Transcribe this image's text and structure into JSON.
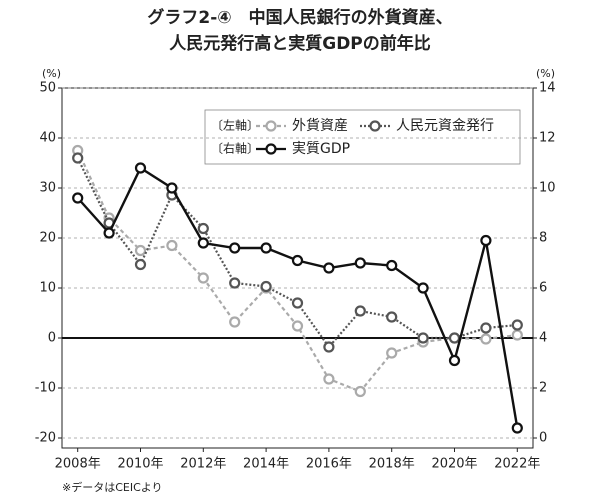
{
  "chart_data": {
    "type": "line",
    "title": [
      "グラフ2-④　中国人民銀行の外貨資産、",
      "人民元発行高と実質GDPの前年比"
    ],
    "y_unit": "(%)",
    "y2_unit": "(%)",
    "source": "※データはCEICより",
    "legend_groups": [
      "〔左軸〕",
      "〔右軸〕"
    ],
    "x": [
      2008,
      2009,
      2010,
      2011,
      2012,
      2013,
      2014,
      2015,
      2016,
      2017,
      2018,
      2019,
      2020,
      2021,
      2022
    ],
    "xlim": [
      2007.5,
      2022.5
    ],
    "xticks": [
      {
        "value": 2008,
        "label": "2008年"
      },
      {
        "value": 2010,
        "label": "2010年"
      },
      {
        "value": 2012,
        "label": "2012年"
      },
      {
        "value": 2014,
        "label": "2014年"
      },
      {
        "value": 2016,
        "label": "2016年"
      },
      {
        "value": 2018,
        "label": "2018年"
      },
      {
        "value": 2020,
        "label": "2020年"
      },
      {
        "value": 2022,
        "label": "2022年"
      }
    ],
    "ylim": [
      -22,
      50
    ],
    "yticks": [
      -20,
      -10,
      0,
      10,
      20,
      30,
      40,
      50
    ],
    "y2lim": [
      -0.4,
      14
    ],
    "y2ticks": [
      0,
      2,
      4,
      6,
      8,
      10,
      12,
      14
    ],
    "grid": true,
    "zero_line": true,
    "series": [
      {
        "name": "外貨資産",
        "color": "#aaaaaa",
        "dash": "4,3",
        "axis": "y",
        "values": [
          37.5,
          24,
          17.5,
          18.5,
          12,
          3.2,
          10,
          2.4,
          -8.2,
          -10.7,
          -3,
          -0.8,
          0,
          -0.2,
          0.6
        ]
      },
      {
        "name": "人民元資金発行",
        "color": "#555555",
        "dash": "2,2",
        "axis": "y",
        "values": [
          36,
          23,
          14.7,
          28.6,
          21.9,
          11,
          10.3,
          7,
          -1.8,
          5.4,
          4.2,
          0,
          0,
          2,
          2.6
        ]
      },
      {
        "name": "実質GDP",
        "color": "#111111",
        "dash": "",
        "axis": "y2",
        "values": [
          9.6,
          8.2,
          10.8,
          10.0,
          7.8,
          7.6,
          7.6,
          7.1,
          6.8,
          7.0,
          6.9,
          6.0,
          3.1,
          7.9,
          0.4
        ]
      }
    ]
  }
}
